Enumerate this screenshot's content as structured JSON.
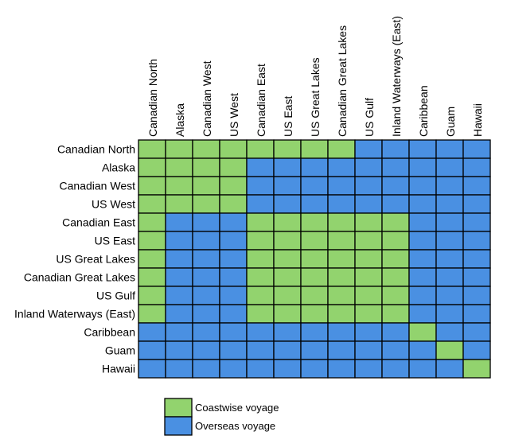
{
  "chart_data": {
    "type": "heatmap",
    "title": "",
    "columns": [
      "Canadian North",
      "Alaska",
      "Canadian West",
      "US West",
      "Canadian East",
      "US East",
      "US Great Lakes",
      "Canadian Great Lakes",
      "US Gulf",
      "Inland Waterways (East)",
      "Caribbean",
      "Guam",
      "Hawaii"
    ],
    "rows": [
      "Canadian North",
      "Alaska",
      "Canadian West",
      "US West",
      "Canadian East",
      "US East",
      "US Great Lakes",
      "Canadian Great Lakes",
      "US Gulf",
      "Inland Waterways (East)",
      "Caribbean",
      "Guam",
      "Hawaii"
    ],
    "matrix": [
      [
        "C",
        "C",
        "C",
        "C",
        "C",
        "C",
        "C",
        "C",
        "O",
        "O",
        "O",
        "O",
        "O"
      ],
      [
        "C",
        "C",
        "C",
        "C",
        "O",
        "O",
        "O",
        "O",
        "O",
        "O",
        "O",
        "O",
        "O"
      ],
      [
        "C",
        "C",
        "C",
        "C",
        "O",
        "O",
        "O",
        "O",
        "O",
        "O",
        "O",
        "O",
        "O"
      ],
      [
        "C",
        "C",
        "C",
        "C",
        "O",
        "O",
        "O",
        "O",
        "O",
        "O",
        "O",
        "O",
        "O"
      ],
      [
        "C",
        "O",
        "O",
        "O",
        "C",
        "C",
        "C",
        "C",
        "C",
        "C",
        "O",
        "O",
        "O"
      ],
      [
        "C",
        "O",
        "O",
        "O",
        "C",
        "C",
        "C",
        "C",
        "C",
        "C",
        "O",
        "O",
        "O"
      ],
      [
        "C",
        "O",
        "O",
        "O",
        "C",
        "C",
        "C",
        "C",
        "C",
        "C",
        "O",
        "O",
        "O"
      ],
      [
        "C",
        "O",
        "O",
        "O",
        "C",
        "C",
        "C",
        "C",
        "C",
        "C",
        "O",
        "O",
        "O"
      ],
      [
        "C",
        "O",
        "O",
        "O",
        "C",
        "C",
        "C",
        "C",
        "C",
        "C",
        "O",
        "O",
        "O"
      ],
      [
        "C",
        "O",
        "O",
        "O",
        "C",
        "C",
        "C",
        "C",
        "C",
        "C",
        "O",
        "O",
        "O"
      ],
      [
        "O",
        "O",
        "O",
        "O",
        "O",
        "O",
        "O",
        "O",
        "O",
        "O",
        "C",
        "O",
        "O"
      ],
      [
        "O",
        "O",
        "O",
        "O",
        "O",
        "O",
        "O",
        "O",
        "O",
        "O",
        "O",
        "C",
        "O"
      ],
      [
        "O",
        "O",
        "O",
        "O",
        "O",
        "O",
        "O",
        "O",
        "O",
        "O",
        "O",
        "O",
        "C"
      ]
    ],
    "categories": {
      "C": {
        "label": "Coastwise voyage",
        "color": "#92d36e"
      },
      "O": {
        "label": "Overseas voyage",
        "color": "#4a90e2"
      }
    },
    "legend": [
      "C",
      "O"
    ],
    "legend_placement": "bottom-center",
    "grid": true
  }
}
